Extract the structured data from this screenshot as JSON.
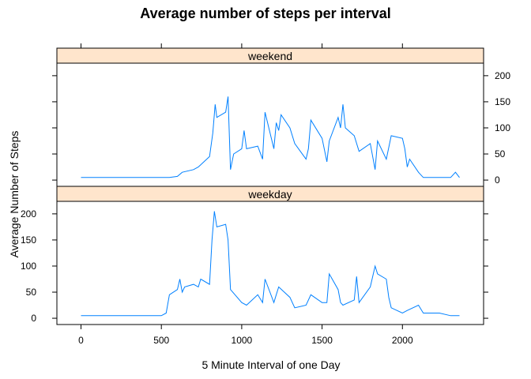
{
  "chart_data": {
    "type": "line",
    "title": "Average number of steps per interval",
    "xlabel": "5 Minute Interval of one Day",
    "ylabel": "Average Number of Steps",
    "xlim": [
      -150,
      2505
    ],
    "ylim": [
      -12,
      224
    ],
    "x_ticks": [
      0,
      500,
      1000,
      1500,
      2000
    ],
    "y_ticks": [
      0,
      50,
      100,
      150,
      200
    ],
    "line_color": "#0080ff",
    "strip_color": "#ffe5cc",
    "grid": false,
    "panels": [
      {
        "name": "weekend",
        "y_axis_side": "right",
        "x": [
          0,
          100,
          200,
          300,
          400,
          500,
          550,
          600,
          630,
          700,
          730,
          800,
          820,
          835,
          845,
          900,
          915,
          930,
          950,
          1000,
          1015,
          1030,
          1100,
          1130,
          1145,
          1200,
          1215,
          1230,
          1245,
          1300,
          1330,
          1400,
          1415,
          1430,
          1500,
          1530,
          1545,
          1600,
          1615,
          1630,
          1645,
          1700,
          1730,
          1800,
          1830,
          1845,
          1900,
          1930,
          2000,
          2015,
          2030,
          2045,
          2100,
          2130,
          2200,
          2230,
          2300,
          2330,
          2355
        ],
        "y": [
          5,
          5,
          5,
          5,
          5,
          5,
          5,
          7,
          15,
          20,
          25,
          45,
          90,
          145,
          120,
          130,
          160,
          20,
          50,
          60,
          95,
          60,
          65,
          40,
          130,
          60,
          110,
          95,
          125,
          100,
          70,
          40,
          60,
          115,
          80,
          35,
          75,
          120,
          100,
          145,
          100,
          85,
          55,
          70,
          20,
          75,
          40,
          85,
          80,
          60,
          25,
          40,
          15,
          5,
          5,
          5,
          5,
          15,
          5
        ]
      },
      {
        "name": "weekday",
        "y_axis_side": "left",
        "x": [
          0,
          100,
          200,
          300,
          400,
          500,
          530,
          550,
          600,
          615,
          630,
          645,
          700,
          730,
          745,
          800,
          815,
          830,
          845,
          900,
          915,
          930,
          1000,
          1030,
          1100,
          1130,
          1145,
          1200,
          1215,
          1230,
          1300,
          1330,
          1400,
          1430,
          1500,
          1530,
          1545,
          1600,
          1615,
          1630,
          1700,
          1715,
          1730,
          1800,
          1830,
          1845,
          1900,
          1915,
          1930,
          2000,
          2030,
          2100,
          2130,
          2200,
          2230,
          2300,
          2355
        ],
        "y": [
          5,
          5,
          5,
          5,
          5,
          5,
          10,
          45,
          55,
          75,
          50,
          60,
          65,
          60,
          75,
          65,
          150,
          205,
          175,
          180,
          150,
          55,
          30,
          25,
          45,
          30,
          75,
          30,
          45,
          60,
          40,
          20,
          25,
          45,
          30,
          30,
          85,
          55,
          30,
          25,
          35,
          80,
          30,
          60,
          100,
          85,
          75,
          40,
          20,
          10,
          15,
          25,
          10,
          10,
          10,
          5,
          5
        ]
      }
    ]
  }
}
